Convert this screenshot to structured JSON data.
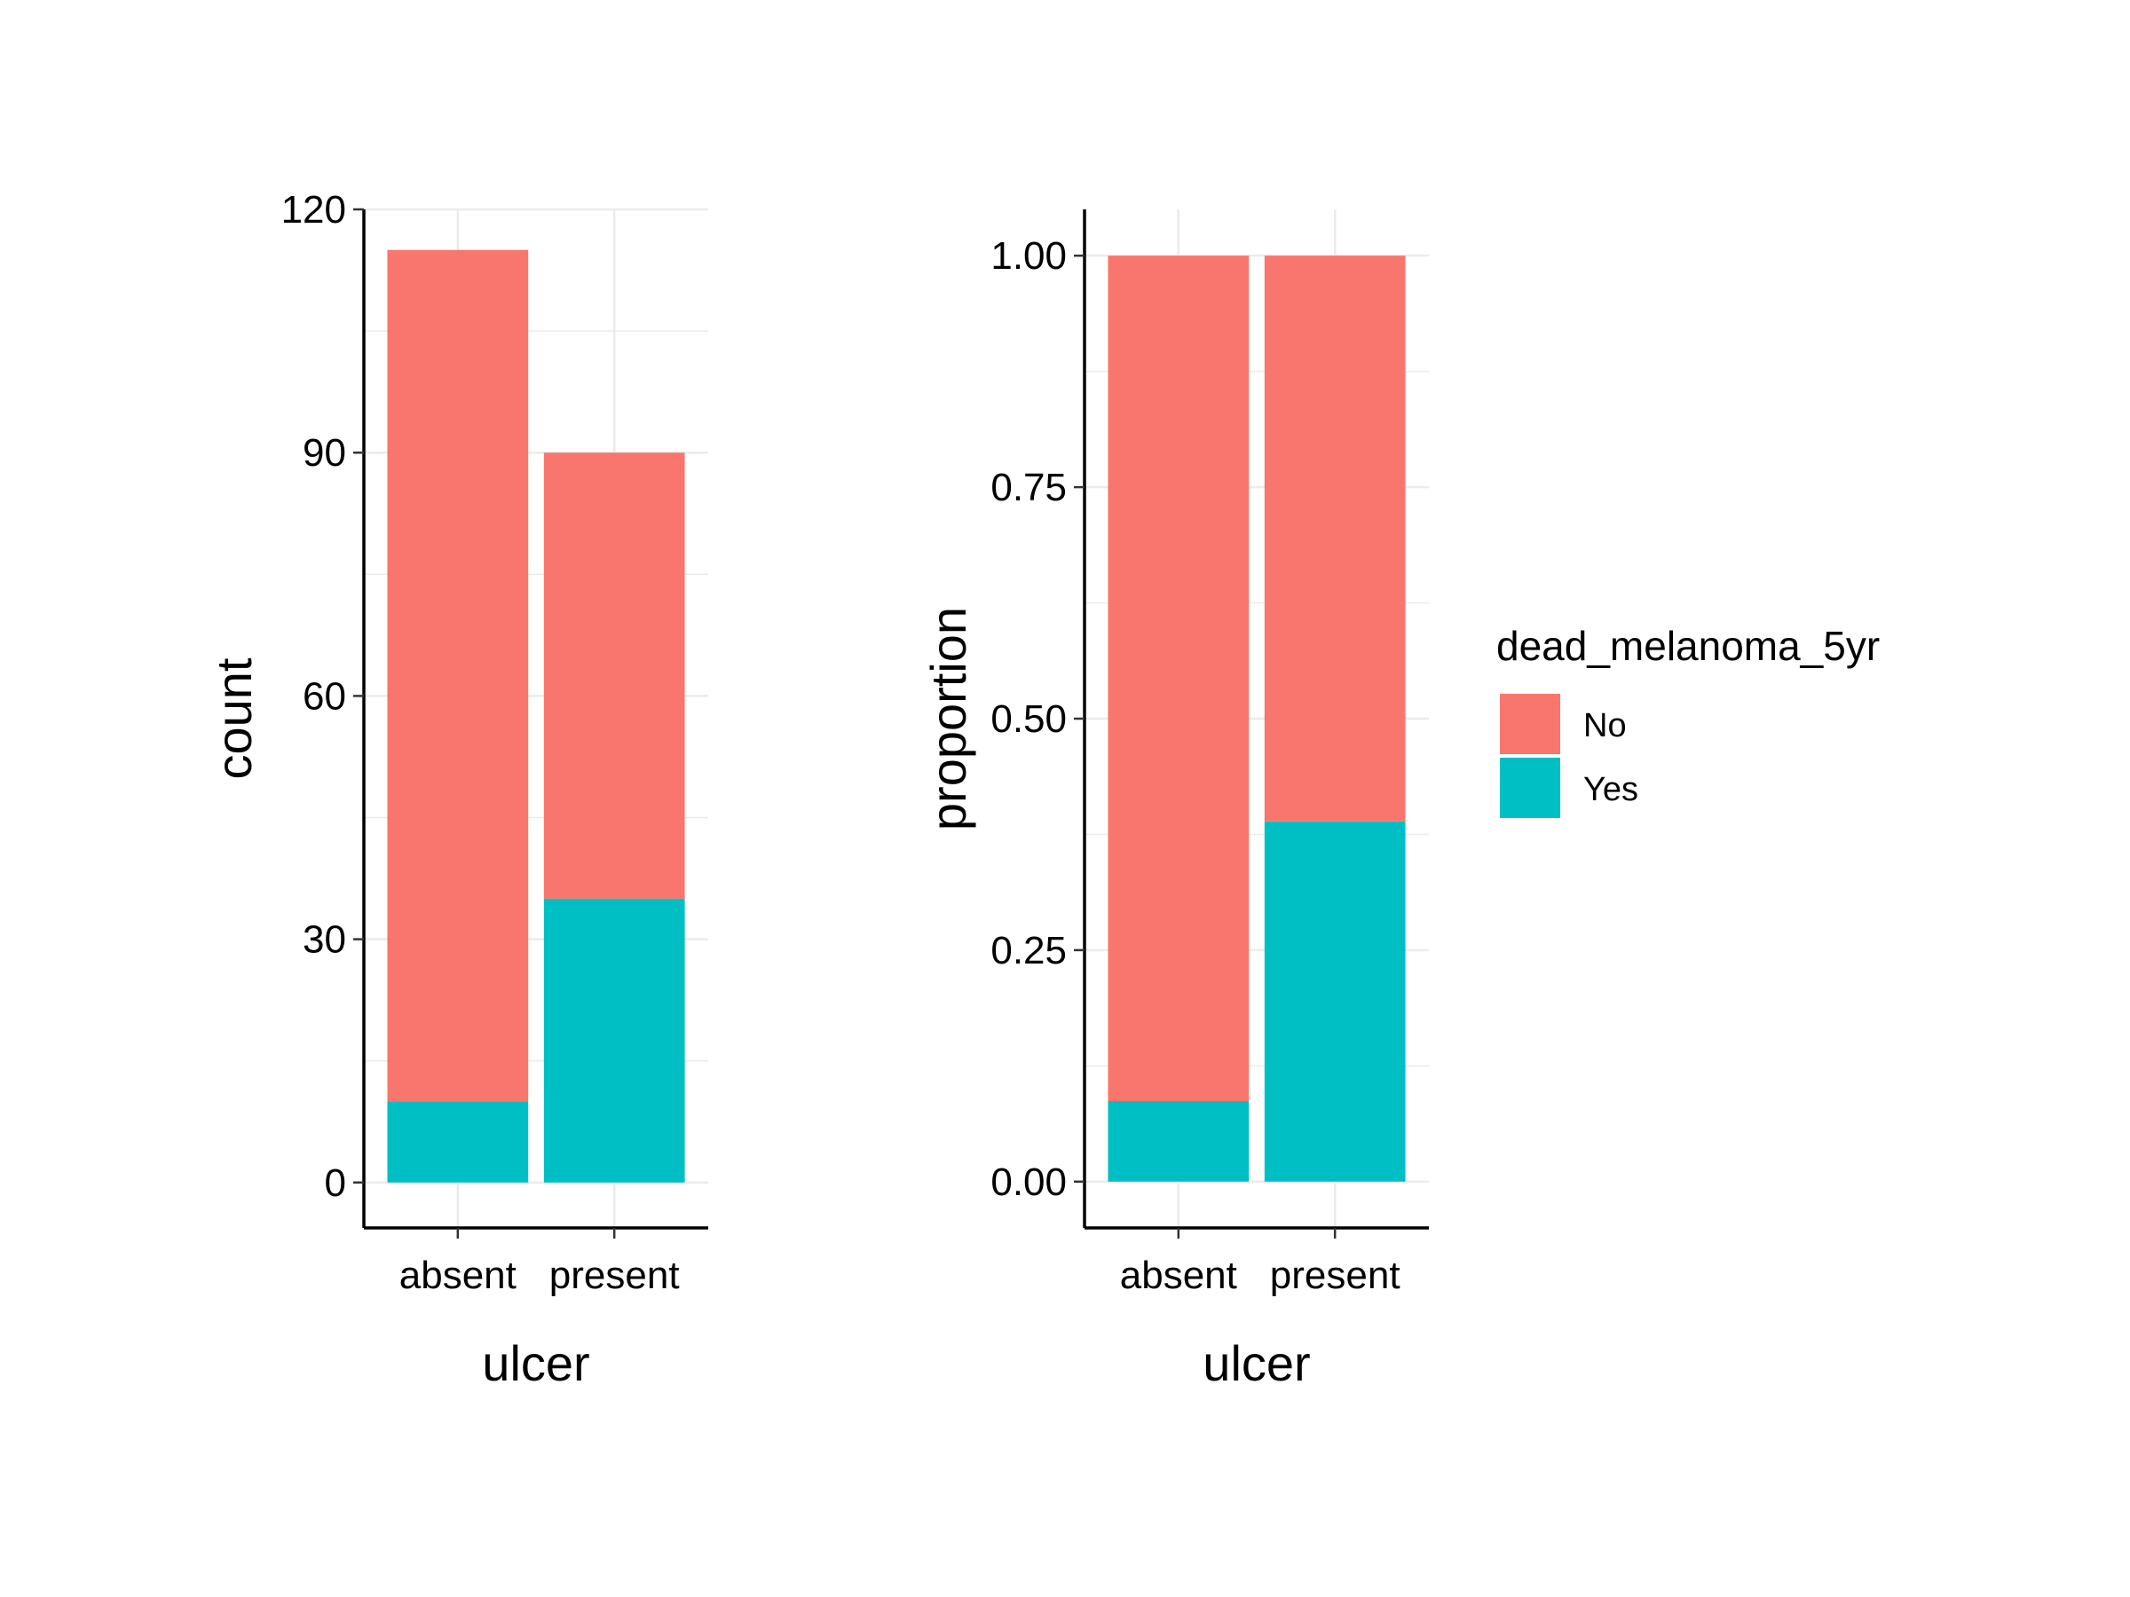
{
  "chart_data": [
    {
      "type": "bar",
      "stacked": true,
      "xlabel": "ulcer",
      "ylabel": "count",
      "categories": [
        "absent",
        "present"
      ],
      "series": [
        {
          "name": "No",
          "values": [
            105,
            55
          ]
        },
        {
          "name": "Yes",
          "values": [
            10,
            35
          ]
        }
      ],
      "ylim": [
        -5.6,
        120
      ],
      "yticks": [
        0,
        30,
        60,
        90,
        120
      ],
      "ytick_labels": [
        "0",
        "30",
        "60",
        "90",
        "120"
      ],
      "grid": true
    },
    {
      "type": "bar",
      "stacked": true,
      "xlabel": "ulcer",
      "ylabel": "proportion",
      "categories": [
        "absent",
        "present"
      ],
      "series": [
        {
          "name": "No",
          "values": [
            0.913,
            0.611
          ]
        },
        {
          "name": "Yes",
          "values": [
            0.087,
            0.389
          ]
        }
      ],
      "ylim": [
        -0.05,
        1.05
      ],
      "yticks": [
        0,
        0.25,
        0.5,
        0.75,
        1.0
      ],
      "ytick_labels": [
        "0.00",
        "0.25",
        "0.50",
        "0.75",
        "1.00"
      ],
      "grid": true
    }
  ],
  "legend": {
    "title": "dead_melanoma_5yr",
    "placement": "right",
    "items": [
      {
        "label": "No",
        "color": "#F8766D"
      },
      {
        "label": "Yes",
        "color": "#00BFC4"
      }
    ]
  },
  "colors": {
    "No": "#F8766D",
    "Yes": "#00BFC4",
    "grid": "#EBEBEB",
    "axis": "#000000"
  }
}
